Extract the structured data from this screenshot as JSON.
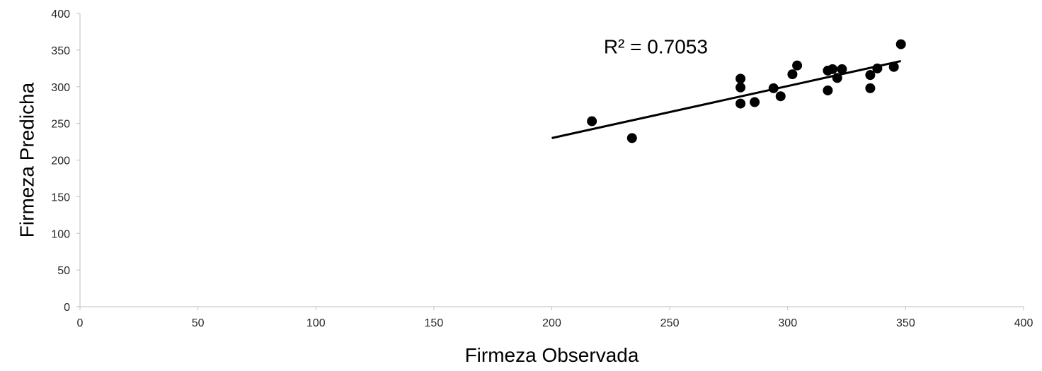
{
  "chart_data": {
    "type": "scatter",
    "title": "",
    "xlabel": "Firmeza Observada",
    "ylabel": "Firmeza Predicha",
    "xlim": [
      0,
      400
    ],
    "ylim": [
      0,
      400
    ],
    "x_ticks": [
      0,
      50,
      100,
      150,
      200,
      250,
      300,
      350,
      400
    ],
    "y_ticks": [
      0,
      50,
      100,
      150,
      200,
      250,
      300,
      350,
      400
    ],
    "grid": false,
    "legend": "none",
    "marker_color": "#000000",
    "series": [
      {
        "points": [
          [
            217,
            253
          ],
          [
            234,
            230
          ],
          [
            280,
            311
          ],
          [
            280,
            299
          ],
          [
            280,
            277
          ],
          [
            286,
            279
          ],
          [
            294,
            298
          ],
          [
            297,
            287
          ],
          [
            302,
            317
          ],
          [
            304,
            329
          ],
          [
            317,
            322
          ],
          [
            317,
            295
          ],
          [
            319,
            324
          ],
          [
            321,
            312
          ],
          [
            323,
            324
          ],
          [
            335,
            316
          ],
          [
            335,
            298
          ],
          [
            338,
            325
          ],
          [
            345,
            327
          ],
          [
            348,
            358
          ]
        ]
      }
    ],
    "trendline": {
      "x": [
        200,
        348
      ],
      "y": [
        230,
        335
      ],
      "color": "#000000"
    },
    "annotations": [
      {
        "text": "R² = 0.7053",
        "x": 222,
        "y": 355
      }
    ]
  }
}
